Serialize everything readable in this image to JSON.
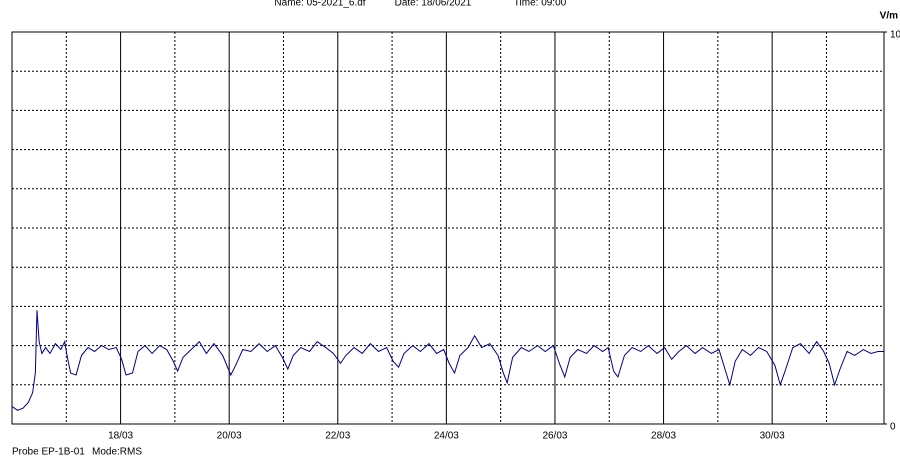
{
  "chart_data": {
    "type": "line",
    "header": {
      "name": "Name: 05-2021_6.df",
      "date": "Date: 18/06/2021",
      "time": "Time: 09:00"
    },
    "y_unit": "V/m",
    "footer": {
      "probe": "Probe EP-1B-01",
      "mode": "Mode:RMS"
    },
    "xlim": [
      16,
      32.06
    ],
    "xticks": [
      {
        "value": 18,
        "label": "18/03"
      },
      {
        "value": 20,
        "label": "20/03"
      },
      {
        "value": 22,
        "label": "22/03"
      },
      {
        "value": 24,
        "label": "24/03"
      },
      {
        "value": 26,
        "label": "26/03"
      },
      {
        "value": 28,
        "label": "28/03"
      },
      {
        "value": 30,
        "label": "30/03"
      }
    ],
    "x_minor_grid": [
      17,
      19,
      21,
      23,
      25,
      27,
      29,
      31
    ],
    "ylim": [
      0,
      10
    ],
    "yticks": [
      0,
      10
    ],
    "y_minor_grid": [
      1,
      2,
      3,
      4,
      5,
      6,
      7,
      8,
      9
    ],
    "x": [
      16.0,
      16.1,
      16.2,
      16.3,
      16.38,
      16.43,
      16.46,
      16.5,
      16.55,
      16.62,
      16.7,
      16.8,
      16.9,
      16.97,
      17.02,
      17.08,
      17.18,
      17.28,
      17.4,
      17.52,
      17.65,
      17.78,
      17.92,
      18.02,
      18.1,
      18.22,
      18.32,
      18.45,
      18.58,
      18.72,
      18.85,
      18.97,
      19.05,
      19.15,
      19.3,
      19.45,
      19.58,
      19.72,
      19.88,
      20.03,
      20.12,
      20.25,
      20.4,
      20.55,
      20.7,
      20.85,
      20.98,
      21.08,
      21.18,
      21.32,
      21.48,
      21.62,
      21.78,
      21.92,
      22.05,
      22.15,
      22.3,
      22.45,
      22.6,
      22.75,
      22.9,
      23.02,
      23.12,
      23.22,
      23.38,
      23.52,
      23.68,
      23.82,
      23.95,
      24.05,
      24.15,
      24.25,
      24.4,
      24.52,
      24.65,
      24.8,
      24.95,
      25.05,
      25.12,
      25.22,
      25.38,
      25.52,
      25.68,
      25.82,
      25.97,
      26.08,
      26.18,
      26.28,
      26.42,
      26.58,
      26.72,
      26.88,
      26.98,
      27.08,
      27.16,
      27.28,
      27.42,
      27.58,
      27.72,
      27.88,
      28.02,
      28.15,
      28.28,
      28.42,
      28.58,
      28.72,
      28.88,
      29.02,
      29.12,
      29.22,
      29.32,
      29.45,
      29.6,
      29.75,
      29.9,
      30.05,
      30.15,
      30.25,
      30.38,
      30.52,
      30.68,
      30.82,
      30.95,
      31.05,
      31.15,
      31.25,
      31.38,
      31.52,
      31.68,
      31.82,
      31.95,
      32.05
    ],
    "series": [
      {
        "color": "#00008b",
        "values": [
          0.45,
          0.35,
          0.4,
          0.55,
          0.8,
          1.3,
          2.9,
          2.1,
          1.8,
          1.95,
          1.8,
          2.05,
          1.9,
          2.1,
          1.7,
          1.3,
          1.25,
          1.75,
          1.95,
          1.85,
          2.0,
          1.9,
          1.95,
          1.65,
          1.25,
          1.3,
          1.85,
          2.0,
          1.8,
          2.0,
          1.9,
          1.6,
          1.35,
          1.7,
          1.9,
          2.1,
          1.8,
          2.05,
          1.75,
          1.25,
          1.5,
          1.9,
          1.85,
          2.05,
          1.85,
          2.0,
          1.7,
          1.4,
          1.75,
          1.95,
          1.85,
          2.1,
          1.95,
          1.8,
          1.55,
          1.75,
          1.95,
          1.8,
          2.05,
          1.85,
          1.95,
          1.6,
          1.45,
          1.8,
          2.0,
          1.85,
          2.05,
          1.8,
          1.9,
          1.55,
          1.3,
          1.75,
          1.95,
          2.25,
          1.95,
          2.05,
          1.75,
          1.3,
          1.05,
          1.7,
          1.95,
          1.85,
          2.0,
          1.85,
          2.0,
          1.55,
          1.2,
          1.7,
          1.9,
          1.8,
          2.0,
          1.85,
          1.95,
          1.35,
          1.2,
          1.75,
          1.95,
          1.85,
          2.0,
          1.8,
          1.95,
          1.65,
          1.85,
          2.0,
          1.8,
          1.95,
          1.8,
          1.9,
          1.45,
          1.0,
          1.6,
          1.9,
          1.75,
          1.95,
          1.85,
          1.5,
          1.0,
          1.4,
          1.95,
          2.05,
          1.8,
          2.1,
          1.85,
          1.55,
          1.0,
          1.4,
          1.85,
          1.75,
          1.9,
          1.8,
          1.85,
          1.85
        ]
      }
    ]
  }
}
